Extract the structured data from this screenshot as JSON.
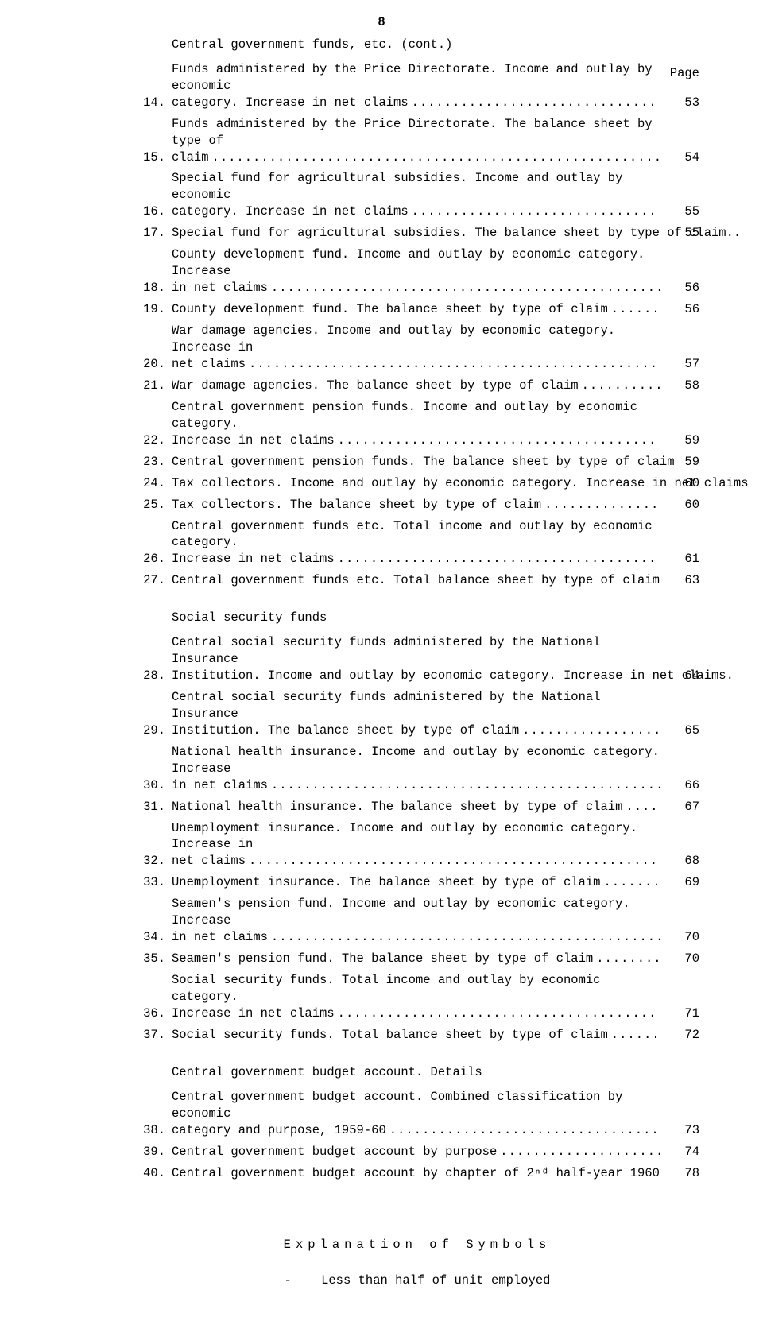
{
  "page_number": "8",
  "page_label": "Page",
  "sections": [
    {
      "title": "Central government funds, etc. (cont.)",
      "title_class": "first-title",
      "entries": [
        {
          "num": "14.",
          "lines": [
            "Funds administered by the Price Directorate.  Income and outlay by economic"
          ],
          "last": "category.  Increase in net claims",
          "page": "53"
        },
        {
          "num": "15.",
          "lines": [
            "Funds administered by the Price Directorate.  The balance sheet by type of"
          ],
          "last": "claim",
          "page": "54"
        },
        {
          "num": "16.",
          "lines": [
            "Special fund for agricultural subsidies.  Income and outlay by economic"
          ],
          "last": "category.  Increase in net claims",
          "page": "55"
        },
        {
          "num": "17.",
          "lines": [],
          "last": "Special fund for agricultural subsidies.  The balance sheet by type of claim..",
          "page": "55",
          "no_leader": true
        },
        {
          "num": "18.",
          "lines": [
            "County development fund.  Income and outlay by economic category.   Increase"
          ],
          "last": "in net claims",
          "page": "56"
        },
        {
          "num": "19.",
          "lines": [],
          "last": "County development fund.  The balance sheet by type of claim",
          "page": "56"
        },
        {
          "num": "20.",
          "lines": [
            "War damage agencies.  Income and outlay by economic category.  Increase in"
          ],
          "last": "net claims",
          "page": "57"
        },
        {
          "num": "21.",
          "lines": [],
          "last": "War damage agencies.  The balance sheet by type of claim",
          "page": "58"
        },
        {
          "num": "22.",
          "lines": [
            "Central government pension funds.  Income and outlay by economic category."
          ],
          "last": "Increase in net claims",
          "page": "59"
        },
        {
          "num": "23.",
          "lines": [],
          "last": "Central government pension funds.  The balance sheet by type of claim",
          "page": "59"
        },
        {
          "num": "24.",
          "lines": [],
          "last": "Tax collectors.  Income and outlay by economic category. Increase in net claims",
          "page": "60",
          "no_leader": true
        },
        {
          "num": "25.",
          "lines": [],
          "last": "Tax collectors.  The balance sheet by type of claim",
          "page": "60"
        },
        {
          "num": "26.",
          "lines": [
            "Central government funds etc.  Total income and outlay by economic category."
          ],
          "last": "Increase in net claims",
          "page": "61"
        },
        {
          "num": "27.",
          "lines": [],
          "last": "Central government funds etc.  Total balance sheet by type of claim",
          "page": "63"
        }
      ]
    },
    {
      "title": "Social security funds",
      "entries": [
        {
          "num": "28.",
          "lines": [
            "Central social security funds administered by the National Insurance"
          ],
          "last": "Institution.  Income and outlay by economic category.  Increase in net claims.",
          "page": "64",
          "no_leader": true
        },
        {
          "num": "29.",
          "lines": [
            "Central social security funds administered by the National Insurance"
          ],
          "last": "Institution.  The balance sheet by type of claim",
          "page": "65"
        },
        {
          "num": "30.",
          "lines": [
            "National health insurance.  Income and outlay by economic category.  Increase"
          ],
          "last": "in net claims",
          "page": "66"
        },
        {
          "num": "31.",
          "lines": [],
          "last": "National health insurance.  The balance sheet by type of claim",
          "page": "67"
        },
        {
          "num": "32.",
          "lines": [
            "Unemployment insurance.  Income and outlay by economic category.  Increase in"
          ],
          "last": "net claims",
          "page": "68"
        },
        {
          "num": "33.",
          "lines": [],
          "last": "Unemployment insurance.  The balance sheet by type of claim",
          "page": "69"
        },
        {
          "num": "34.",
          "lines": [
            "Seamen's pension fund.  Income and outlay by economic category.  Increase"
          ],
          "last": "in net claims",
          "page": "70"
        },
        {
          "num": "35.",
          "lines": [],
          "last": "Seamen's pension fund.  The balance sheet by type of claim",
          "page": "70"
        },
        {
          "num": "36.",
          "lines": [
            "Social security funds.  Total income and outlay by economic category."
          ],
          "last": "Increase in net claims",
          "page": "71"
        },
        {
          "num": "37.",
          "lines": [],
          "last": "Social security funds.  Total balance sheet by type of claim",
          "page": "72"
        }
      ]
    },
    {
      "title": "Central government budget account.  Details",
      "entries": [
        {
          "num": "38.",
          "lines": [
            "Central government budget account.  Combined classification by economic"
          ],
          "last": "category and purpose, 1959-60",
          "page": "73"
        },
        {
          "num": "39.",
          "lines": [],
          "last": "Central government budget account by purpose",
          "page": "74"
        },
        {
          "num": "40.",
          "lines": [],
          "last": "Central government budget account by chapter of 2ⁿᵈ half-year 1960",
          "page": "78"
        }
      ]
    }
  ],
  "explanation": {
    "title": "Explanation of Symbols",
    "symbol": "-",
    "text": "Less than half of unit employed"
  },
  "leader_dots": "........................................................................................................................"
}
